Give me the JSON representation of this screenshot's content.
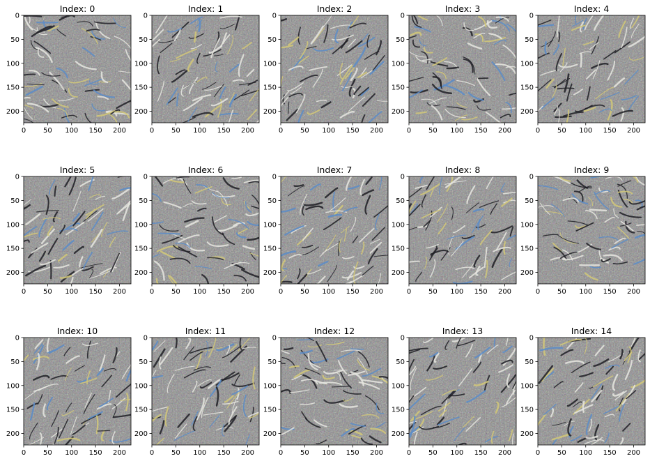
{
  "figure": {
    "panels": [
      {
        "title": "Index: 0"
      },
      {
        "title": "Index: 1"
      },
      {
        "title": "Index: 2"
      },
      {
        "title": "Index: 3"
      },
      {
        "title": "Index: 4"
      },
      {
        "title": "Index: 5"
      },
      {
        "title": "Index: 6"
      },
      {
        "title": "Index: 7"
      },
      {
        "title": "Index: 8"
      },
      {
        "title": "Index: 9"
      },
      {
        "title": "Index: 10"
      },
      {
        "title": "Index: 11"
      },
      {
        "title": "Index: 12"
      },
      {
        "title": "Index: 13"
      },
      {
        "title": "Index: 14"
      }
    ],
    "x_ticks": [
      "0",
      "50",
      "100",
      "150",
      "200"
    ],
    "y_ticks": [
      "0",
      "50",
      "100",
      "150",
      "200"
    ],
    "image_extent": [
      0,
      224
    ],
    "image_description_colors": {
      "base": "#8c8c8c",
      "light": "#e6e6e0",
      "dark": "#1e1e24",
      "accent_blue": "#5a8cc8",
      "accent_yellow": "#d2c878"
    }
  }
}
